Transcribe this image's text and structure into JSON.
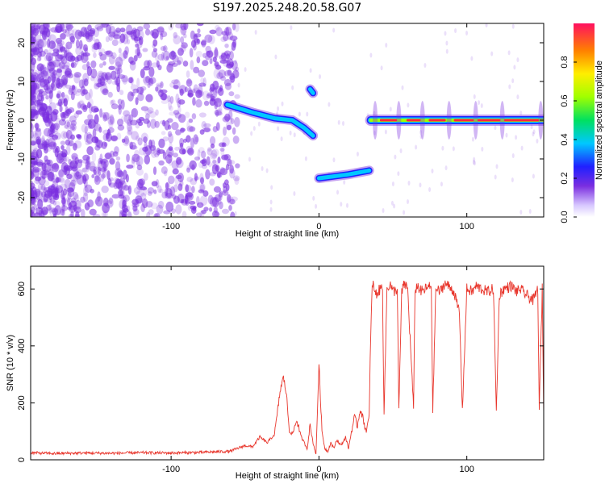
{
  "title": "S197.2025.248.20.58.G07",
  "colors": {
    "snr_line": "#e8352b",
    "noise": "#7a2ee0",
    "ridge": "#00c8ff",
    "ridge_core": "#ff2040"
  },
  "chart_data": [
    {
      "type": "heatmap",
      "xlabel": "Height of straight line (km)",
      "ylabel": "Frequency (Hz)",
      "xlim": [
        -195,
        152
      ],
      "ylim": [
        -25,
        25
      ],
      "xticks": [
        {
          "v": -100,
          "label": "-100"
        },
        {
          "v": 0,
          "label": "0"
        },
        {
          "v": 100,
          "label": "100"
        }
      ],
      "yticks": [
        {
          "v": 20,
          "label": "20"
        },
        {
          "v": 10,
          "label": "10"
        },
        {
          "v": 0,
          "label": "0"
        },
        {
          "v": -10,
          "label": "-10"
        },
        {
          "v": -20,
          "label": "-20"
        }
      ],
      "colorbar": {
        "label": "Normalized spectral amplitude",
        "range": [
          0,
          1
        ],
        "ticks": [
          {
            "v": 0.0,
            "label": "0.0"
          },
          {
            "v": 0.2,
            "label": "0.2"
          },
          {
            "v": 0.4,
            "label": "0.4"
          },
          {
            "v": 0.6,
            "label": "0.6"
          },
          {
            "v": 0.8,
            "label": "0.8"
          }
        ]
      },
      "ridges": [
        {
          "x": [
            -62,
            -45,
            -30,
            -18,
            -10,
            -4
          ],
          "y": [
            4,
            2,
            0.5,
            0,
            -2,
            -4
          ],
          "amp": 0.35
        },
        {
          "x": [
            -6,
            -4
          ],
          "y": [
            8,
            7
          ],
          "amp": 0.3
        },
        {
          "x": [
            0,
            10,
            20,
            34
          ],
          "y": [
            -15,
            -14.5,
            -14,
            -13
          ],
          "amp": 0.45
        },
        {
          "x": [
            35,
            152
          ],
          "y": [
            0,
            0
          ],
          "amp": 0.9
        }
      ]
    },
    {
      "type": "line",
      "xlabel": "Height of straight line (km)",
      "ylabel": "SNR (10 * v/v)",
      "xlim": [
        -195,
        152
      ],
      "ylim": [
        0,
        680
      ],
      "xticks": [
        {
          "v": -100,
          "label": "-100"
        },
        {
          "v": 0,
          "label": "0"
        },
        {
          "v": 100,
          "label": "100"
        }
      ],
      "yticks": [
        {
          "v": 0,
          "label": "0"
        },
        {
          "v": 200,
          "label": "200"
        },
        {
          "v": 400,
          "label": "400"
        },
        {
          "v": 600,
          "label": "600"
        }
      ],
      "series": [
        {
          "name": "SNR",
          "x": [
            -195,
            -180,
            -160,
            -140,
            -120,
            -100,
            -80,
            -70,
            -60,
            -55,
            -50,
            -45,
            -40,
            -35,
            -30,
            -26,
            -24,
            -22,
            -20,
            -18,
            -15,
            -12,
            -10,
            -8,
            -6,
            -4,
            -2,
            0,
            2,
            4,
            6,
            8,
            10,
            12,
            15,
            18,
            20,
            22,
            24,
            26,
            28,
            30,
            32,
            34,
            35,
            36,
            37,
            38,
            40,
            43,
            44,
            46,
            48,
            50,
            53,
            54,
            56,
            58,
            60,
            64,
            65,
            67,
            69,
            72,
            76,
            77,
            79,
            82,
            85,
            90,
            92,
            93,
            95,
            97,
            100,
            104,
            106,
            110,
            114,
            118,
            120,
            122,
            125,
            130,
            134,
            136,
            140,
            145,
            148,
            149,
            151,
            152
          ],
          "y": [
            25,
            22,
            24,
            23,
            25,
            24,
            26,
            28,
            30,
            40,
            50,
            45,
            80,
            60,
            90,
            250,
            290,
            230,
            100,
            90,
            140,
            80,
            60,
            40,
            120,
            60,
            20,
            340,
            100,
            40,
            30,
            60,
            40,
            70,
            50,
            80,
            40,
            100,
            150,
            120,
            180,
            140,
            100,
            150,
            450,
            600,
            620,
            580,
            590,
            610,
            160,
            600,
            620,
            590,
            600,
            170,
            590,
            620,
            600,
            180,
            600,
            610,
            590,
            600,
            610,
            170,
            600,
            590,
            620,
            600,
            580,
            550,
            520,
            170,
            600,
            590,
            610,
            600,
            590,
            600,
            170,
            580,
            600,
            610,
            590,
            600,
            580,
            560,
            600,
            170,
            600,
            160
          ]
        }
      ]
    }
  ]
}
